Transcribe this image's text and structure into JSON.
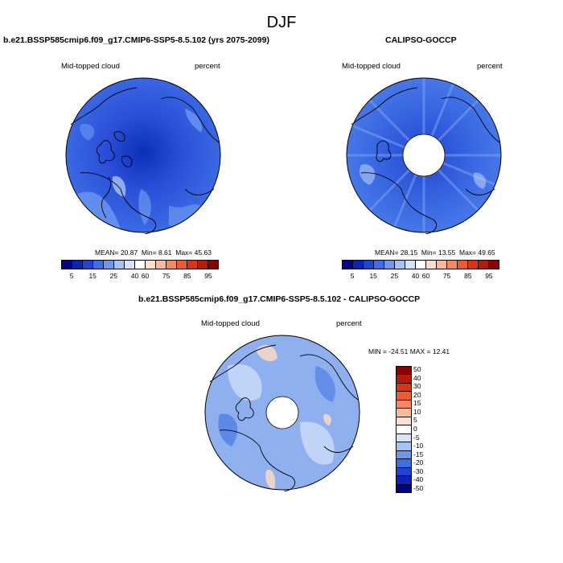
{
  "figure_title": "DJF",
  "panels": [
    {
      "title": "b.e21.BSSP585cmip6.f09_g17.CMIP6-SSP5-8.5.102 (yrs 2075-2099)",
      "left_label": "Mid-topped cloud",
      "right_label": "percent",
      "stats": {
        "mean_label": "MEAN=",
        "mean": "20.87",
        "min_label": "Min=",
        "min": "8.61",
        "max_label": "Max=",
        "max": "45.63"
      },
      "colors": {
        "background": "#3d6ee6",
        "core": "#0b2fb8",
        "mid": "#2a4fd9",
        "light": "#6b98f0",
        "pale": "#a9c4f5"
      }
    },
    {
      "title": "CALIPSO-GOCCP",
      "left_label": "Mid-topped cloud",
      "right_label": "percent",
      "stats": {
        "mean_label": "MEAN=",
        "mean": "28.15",
        "min_label": "Min=",
        "min": "13.55",
        "max_label": "Max=",
        "max": "49.65"
      },
      "colors": {
        "background": "#4a7ce8",
        "core": "#2346cf",
        "mid": "#3563e0",
        "light": "#7aa3f2",
        "pale": "#b6cdf7"
      }
    },
    {
      "title": "b.e21.BSSP585cmip6.f09_g17.CMIP6-SSP5-8.5.102 - CALIPSO-GOCCP",
      "left_label": "Mid-topped cloud",
      "right_label": "percent",
      "minmax": "MIN = -24.51 MAX =  12.41",
      "colors": {
        "background": "#8fb0ef",
        "core": "#4f7fe6",
        "mid": "#6f98ec",
        "light": "#c7d8f8",
        "pale": "#f4d7c4"
      }
    }
  ],
  "colorbar_horizontal": {
    "labels": [
      "5",
      "15",
      "25",
      "40",
      "60",
      "75",
      "85",
      "95"
    ],
    "colors": [
      "#00008b",
      "#0b24b5",
      "#1f45d6",
      "#3d6ee6",
      "#6e98f0",
      "#a5c1f5",
      "#d8e4fb",
      "#ffffff",
      "#fde0cc",
      "#f9b99a",
      "#f58a62",
      "#ef5a2f",
      "#dd3311",
      "#b81a06",
      "#8b0000"
    ]
  },
  "colorbar_vertical": {
    "labels": [
      "50",
      "40",
      "30",
      "20",
      "15",
      "10",
      "5",
      "0",
      "-5",
      "-10",
      "-15",
      "-20",
      "-30",
      "-40",
      "-50"
    ],
    "colors": [
      "#8b0000",
      "#b81a06",
      "#dd3311",
      "#ef5a2f",
      "#f58a62",
      "#f9b99a",
      "#fde0cc",
      "#ffffff",
      "#d8e4fb",
      "#a5c1f5",
      "#6e98f0",
      "#3d6ee6",
      "#1f45d6",
      "#0b24b5",
      "#00008b"
    ]
  }
}
